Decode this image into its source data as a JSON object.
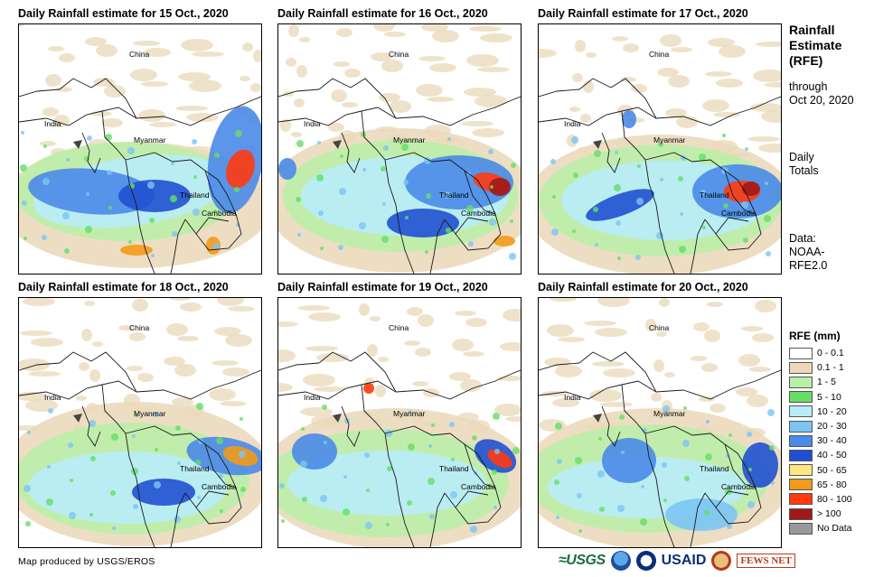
{
  "panels": [
    {
      "title": "Daily Rainfall estimate for 15 Oct., 2020"
    },
    {
      "title": "Daily Rainfall estimate for 16 Oct., 2020"
    },
    {
      "title": "Daily Rainfall estimate for 17 Oct., 2020"
    },
    {
      "title": "Daily Rainfall estimate for 18 Oct., 2020"
    },
    {
      "title": "Daily Rainfall estimate for 19 Oct., 2020"
    },
    {
      "title": "Daily Rainfall estimate for 20 Oct., 2020"
    }
  ],
  "places": {
    "china": "China",
    "india": "India",
    "myanmar": "Myanmar",
    "thailand": "Thailand",
    "cambodia": "Cambodia"
  },
  "sidebar": {
    "title_line1": "Rainfall",
    "title_line2": "Estimate",
    "title_line3": "(RFE)",
    "through_line1": "through",
    "through_line2": "Oct 20, 2020",
    "daily_line1": "Daily",
    "daily_line2": "Totals",
    "data_line1": "Data:",
    "data_line2": "NOAA-",
    "data_line3": "RFE2.0"
  },
  "legend": {
    "title": "RFE (mm)",
    "items": [
      {
        "label": "0 - 0.1",
        "color": "#ffffff"
      },
      {
        "label": "0.1 - 1",
        "color": "#ead8b8"
      },
      {
        "label": "1 - 5",
        "color": "#b8f0a8"
      },
      {
        "label": "5 - 10",
        "color": "#66dd66"
      },
      {
        "label": "10 - 20",
        "color": "#b8ecf8"
      },
      {
        "label": "20 - 30",
        "color": "#7cc4f4"
      },
      {
        "label": "30 - 40",
        "color": "#4a8ae8"
      },
      {
        "label": "40 - 50",
        "color": "#2050d0"
      },
      {
        "label": "50 - 65",
        "color": "#ffe680"
      },
      {
        "label": "65 - 80",
        "color": "#f29a1a"
      },
      {
        "label": "80 - 100",
        "color": "#ff3a10"
      },
      {
        "label": "> 100",
        "color": "#a01818"
      },
      {
        "label": "No Data",
        "color": "#999999"
      }
    ]
  },
  "footer": {
    "credit": "Map produced by USGS/EROS",
    "logo_usgs": "≈USGS",
    "logo_usaid": "USAID",
    "logo_fews": "FEWS NET"
  }
}
